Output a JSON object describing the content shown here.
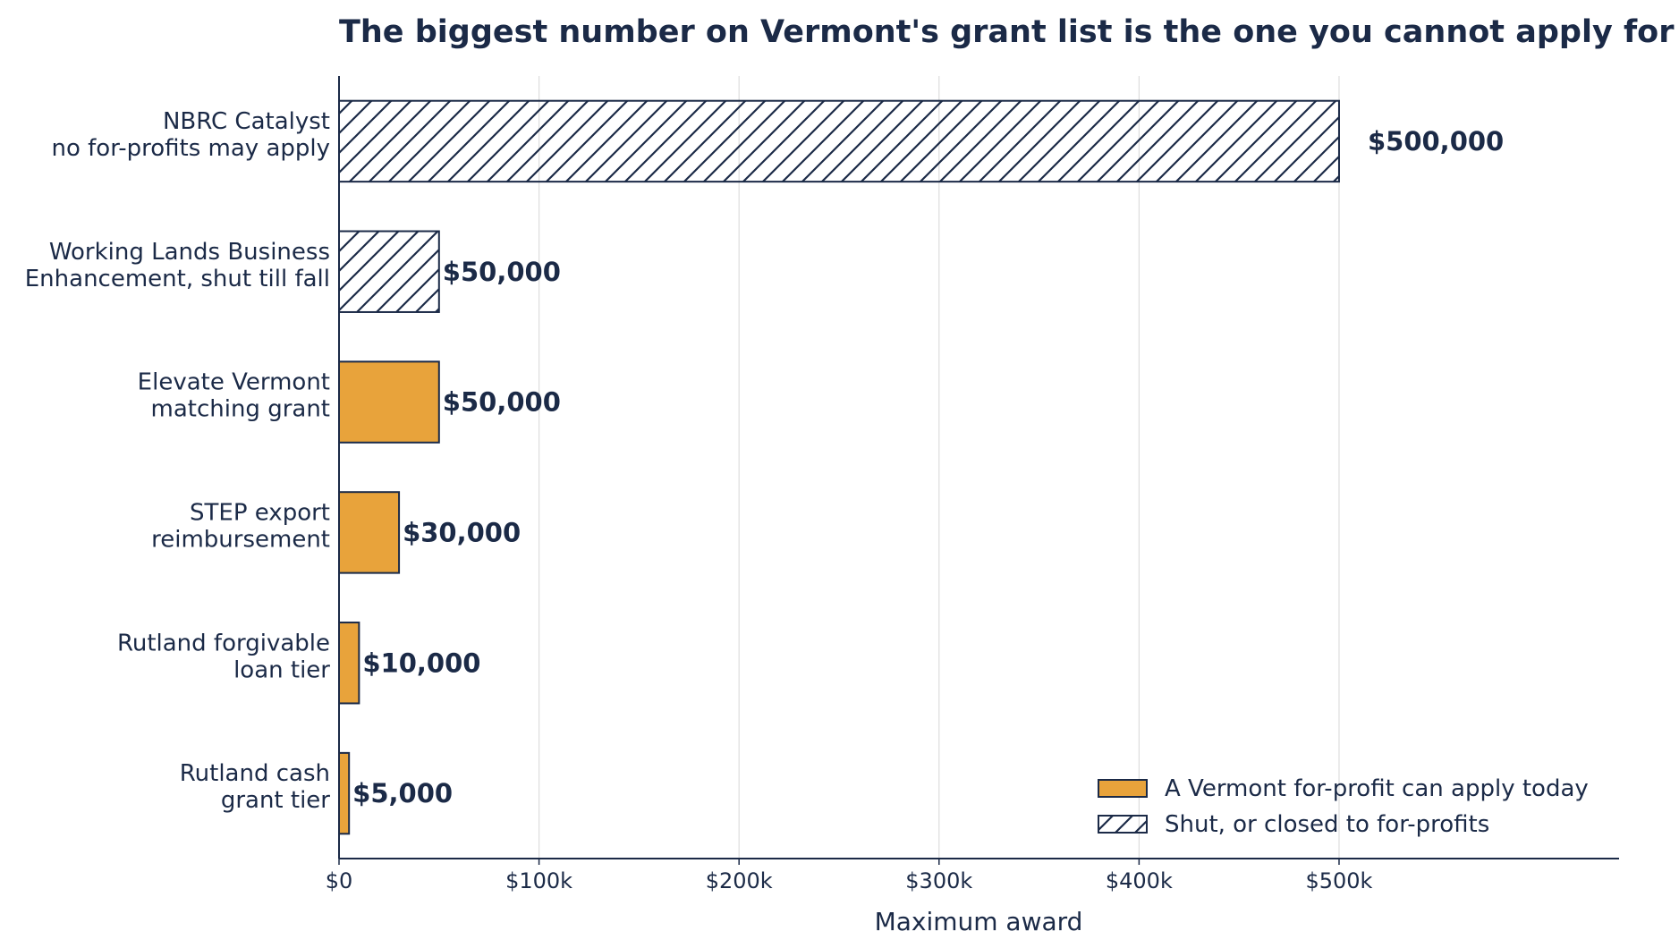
{
  "chart_data": {
    "type": "bar",
    "orientation": "horizontal",
    "title": "The biggest number on Vermont's grant list is the one you cannot apply for",
    "xlabel": "Maximum award",
    "ylabel": "",
    "xlim": [
      0,
      640000
    ],
    "grid": "vertical",
    "xticks": [
      {
        "value": 0,
        "label": "$0"
      },
      {
        "value": 100000,
        "label": "$100k"
      },
      {
        "value": 200000,
        "label": "$200k"
      },
      {
        "value": 300000,
        "label": "$300k"
      },
      {
        "value": 400000,
        "label": "$400k"
      },
      {
        "value": 500000,
        "label": "$500k"
      }
    ],
    "bars": [
      {
        "label_lines": [
          "NBRC Catalyst",
          "no for-profits may apply"
        ],
        "value": 500000,
        "value_label": "$500,000",
        "status": "closed"
      },
      {
        "label_lines": [
          "Working Lands Business",
          "Enhancement, shut till fall"
        ],
        "value": 50000,
        "value_label": "$50,000",
        "status": "closed"
      },
      {
        "label_lines": [
          "Elevate Vermont",
          "matching grant"
        ],
        "value": 50000,
        "value_label": "$50,000",
        "status": "open"
      },
      {
        "label_lines": [
          "STEP export",
          "reimbursement"
        ],
        "value": 30000,
        "value_label": "$30,000",
        "status": "open"
      },
      {
        "label_lines": [
          "Rutland forgivable",
          "loan tier"
        ],
        "value": 10000,
        "value_label": "$10,000",
        "status": "open"
      },
      {
        "label_lines": [
          "Rutland cash",
          "grant tier"
        ],
        "value": 5000,
        "value_label": "$5,000",
        "status": "open"
      }
    ],
    "legend": {
      "placement": "lower-right",
      "entries": [
        {
          "label": "A Vermont for-profit can apply today",
          "status": "open"
        },
        {
          "label": "Shut, or closed to for-profits",
          "status": "closed"
        }
      ]
    },
    "colors": {
      "open_fill": "#E8A33B",
      "ink": "#1B2A47",
      "grid": "#DDDDDD"
    }
  }
}
